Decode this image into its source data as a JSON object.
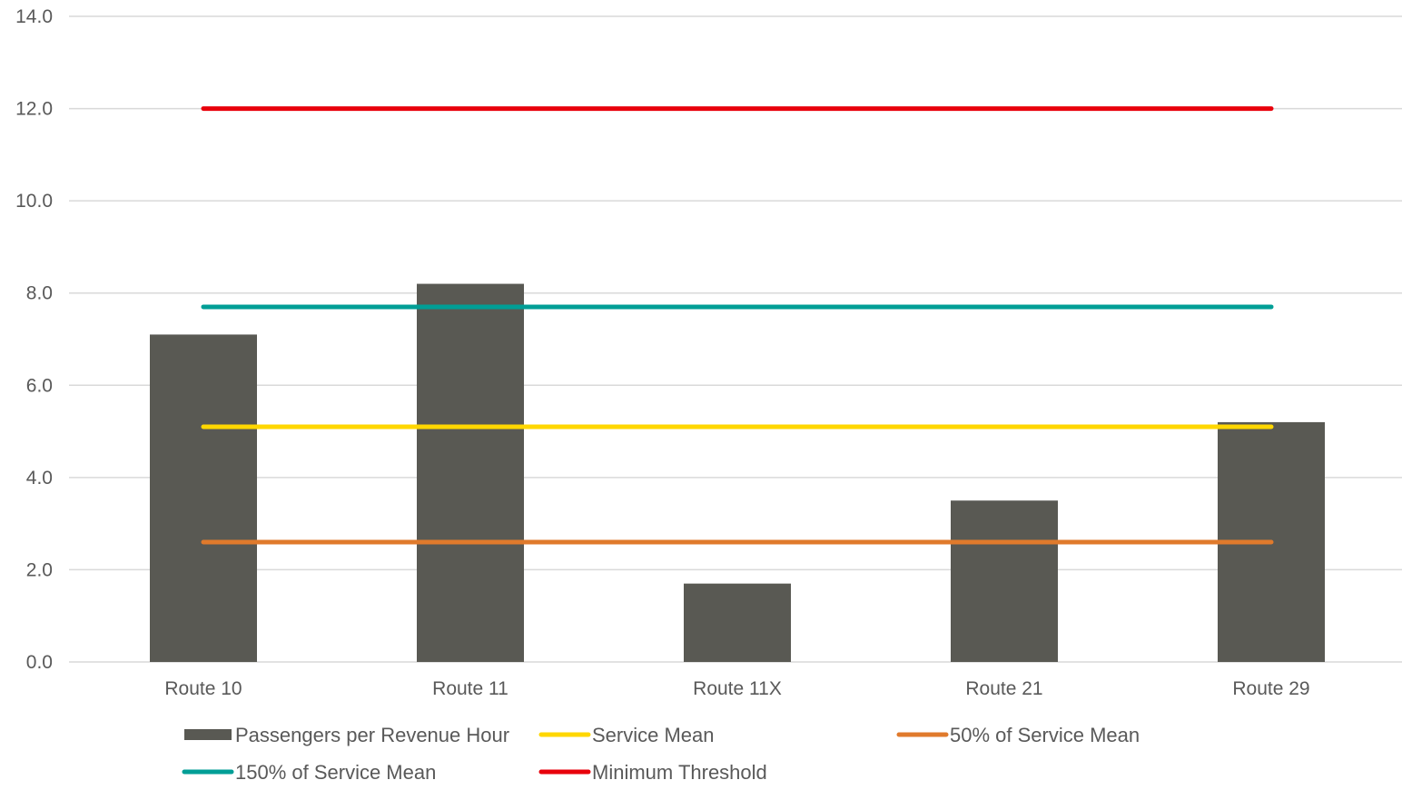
{
  "chart_data": {
    "type": "bar",
    "title": "",
    "xlabel": "",
    "ylabel": "",
    "categories": [
      "Route 10",
      "Route 11",
      "Route 11X",
      "Route 21",
      "Route 29"
    ],
    "ylim": [
      0,
      14
    ],
    "yticks": [
      "0.0",
      "2.0",
      "4.0",
      "6.0",
      "8.0",
      "10.0",
      "12.0",
      "14.0"
    ],
    "ytick_values": [
      0,
      2,
      4,
      6,
      8,
      10,
      12,
      14
    ],
    "grid": true,
    "legend_position": "bottom",
    "series": [
      {
        "name": "Passengers per Revenue Hour",
        "kind": "bar",
        "color": "#595953",
        "values": [
          7.1,
          8.2,
          1.7,
          3.5,
          5.2
        ]
      },
      {
        "name": "Service Mean",
        "kind": "line",
        "color": "#FFD700",
        "values": [
          5.1,
          5.1,
          5.1,
          5.1,
          5.1
        ]
      },
      {
        "name": "50% of Service Mean",
        "kind": "line",
        "color": "#E07A2C",
        "values": [
          2.6,
          2.6,
          2.6,
          2.6,
          2.6
        ]
      },
      {
        "name": "150% of Service Mean",
        "kind": "line",
        "color": "#009E96",
        "values": [
          7.7,
          7.7,
          7.7,
          7.7,
          7.7
        ]
      },
      {
        "name": "Minimum Threshold",
        "kind": "line",
        "color": "#E8000B",
        "values": [
          12.0,
          12.0,
          12.0,
          12.0,
          12.0
        ]
      }
    ]
  }
}
